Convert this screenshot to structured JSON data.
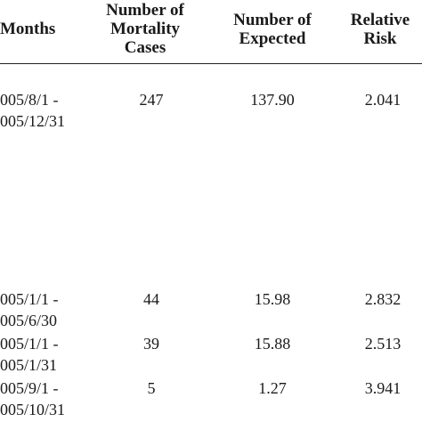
{
  "table": {
    "headers": {
      "months": "Months",
      "mortality": [
        "Number of",
        "Mortality",
        "Cases"
      ],
      "expected": [
        "Number of",
        "Expected"
      ],
      "relative_risk": [
        "Relative",
        "Risk"
      ]
    },
    "rows": [
      {
        "months": [
          "005/8/1 -",
          "005/12/31"
        ],
        "mortality": "247",
        "expected": "137.90",
        "relative_risk": "2.041"
      },
      {
        "months": [
          "005/1/1 -",
          "005/6/30"
        ],
        "mortality": "44",
        "expected": "15.98",
        "relative_risk": "2.832"
      },
      {
        "months": [
          "005/1/1 -",
          "005/1/31"
        ],
        "mortality": "39",
        "expected": "15.88",
        "relative_risk": "2.513"
      },
      {
        "months": [
          "005/9/1 -",
          "005/10/31"
        ],
        "mortality": "5",
        "expected": "1.27",
        "relative_risk": "3.941"
      }
    ]
  }
}
